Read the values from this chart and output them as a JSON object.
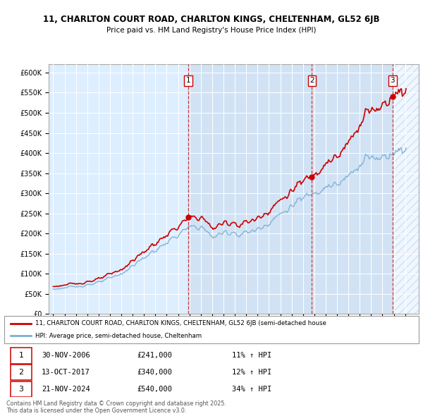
{
  "title_line1": "11, CHARLTON COURT ROAD, CHARLTON KINGS, CHELTENHAM, GL52 6JB",
  "title_line2": "Price paid vs. HM Land Registry's House Price Index (HPI)",
  "ylabel_ticks": [
    "£0",
    "£50K",
    "£100K",
    "£150K",
    "£200K",
    "£250K",
    "£300K",
    "£350K",
    "£400K",
    "£450K",
    "£500K",
    "£550K",
    "£600K"
  ],
  "ytick_values": [
    0,
    50000,
    100000,
    150000,
    200000,
    250000,
    300000,
    350000,
    400000,
    450000,
    500000,
    550000,
    600000
  ],
  "xlim_start": 1994.6,
  "xlim_end": 2027.2,
  "ylim_min": 0,
  "ylim_max": 620000,
  "sale_dates_num": [
    2006.92,
    2017.79,
    2024.9
  ],
  "sale_prices": [
    241000,
    340000,
    540000
  ],
  "sale_labels": [
    "1",
    "2",
    "3"
  ],
  "legend_line1": "11, CHARLTON COURT ROAD, CHARLTON KINGS, CHELTENHAM, GL52 6JB (semi-detached house",
  "legend_line2": "HPI: Average price, semi-detached house, Cheltenham",
  "transaction_rows": [
    {
      "label": "1",
      "date": "30-NOV-2006",
      "price": "£241,000",
      "change": "11% ↑ HPI"
    },
    {
      "label": "2",
      "date": "13-OCT-2017",
      "price": "£340,000",
      "change": "12% ↑ HPI"
    },
    {
      "label": "3",
      "date": "21-NOV-2024",
      "price": "£540,000",
      "change": "34% ↑ HPI"
    }
  ],
  "footer": "Contains HM Land Registry data © Crown copyright and database right 2025.\nThis data is licensed under the Open Government Licence v3.0.",
  "price_color": "#cc0000",
  "hpi_color": "#7aafd4",
  "bg_color": "#ddeeff",
  "shade_color": "#ccddf0"
}
